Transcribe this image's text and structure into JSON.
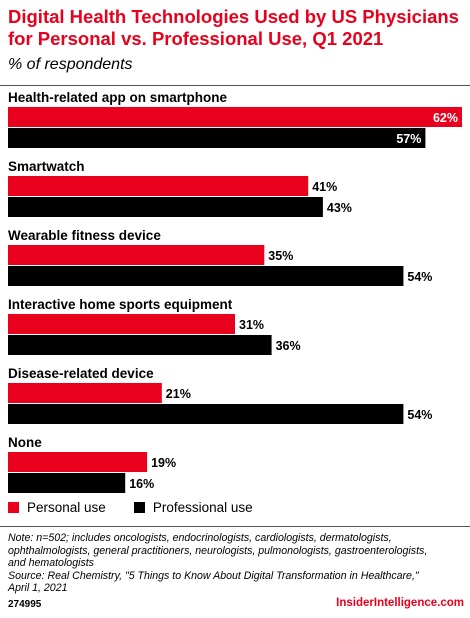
{
  "header": {
    "title_line1": "Digital Health Technologies Used by US Physicians",
    "title_line2": "for Personal vs. Professional Use, Q1 2021",
    "subtitle": "% of respondents"
  },
  "colors": {
    "personal": "#e8001c",
    "professional": "#000000",
    "accent": "#e8001c"
  },
  "chart_data": {
    "type": "bar",
    "orientation": "horizontal",
    "title": "Digital Health Technologies Used by US Physicians for Personal vs. Professional Use, Q1 2021",
    "subtitle": "% of respondents",
    "categories": [
      "Health-related app on smartphone",
      "Smartwatch",
      "Wearable fitness device",
      "Interactive home sports equipment",
      "Disease-related device",
      "None"
    ],
    "series": [
      {
        "name": "Personal use",
        "values": [
          62,
          41,
          35,
          31,
          21,
          19
        ]
      },
      {
        "name": "Professional use",
        "values": [
          57,
          43,
          54,
          36,
          54,
          16
        ]
      }
    ],
    "value_suffix": "%",
    "xlim": [
      0,
      62
    ],
    "grid": false,
    "legend": "bottom-left"
  },
  "legend": {
    "personal_label": "Personal use",
    "professional_label": "Professional use"
  },
  "footer": {
    "note_lines": [
      "Note: n=502; includes oncologists, endocrinologists, cardiologists, dermatologists,",
      "ophthalmologists, general practitioners, neurologists, pulmonologists, gastroenterologists,",
      "and hematologists",
      "Source: Real Chemistry, \"5 Things to Know About Digital Transformation in Healthcare,\"",
      "April 1, 2021"
    ],
    "chart_id": "274995",
    "brand": "InsiderIntelligence.com"
  }
}
